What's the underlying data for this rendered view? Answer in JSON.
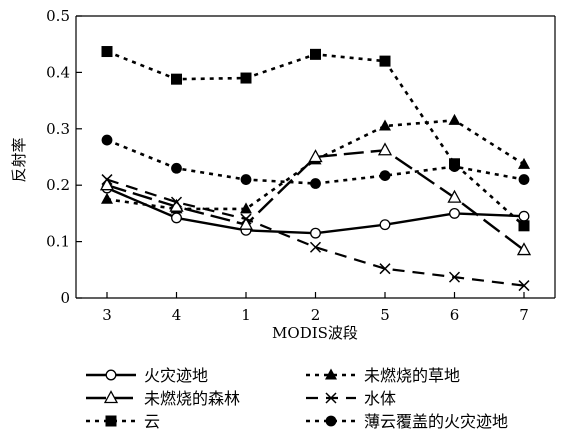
{
  "chart_data": {
    "type": "line",
    "title": "",
    "xlabel": "MODIS波段",
    "ylabel": "反射率",
    "categories": [
      "3",
      "4",
      "1",
      "2",
      "5",
      "6",
      "7"
    ],
    "yticks": [
      "0",
      "0.1",
      "0.2",
      "0.3",
      "0.4",
      "0.5"
    ],
    "ylim": [
      0,
      0.5
    ],
    "grid": false,
    "legend_position": "bottom",
    "series": [
      {
        "name": "火灾迹地",
        "marker": "open-circle",
        "line": "solid",
        "values": [
          0.195,
          0.142,
          0.12,
          0.115,
          0.13,
          0.15,
          0.145
        ]
      },
      {
        "name": "未燃烧的草地",
        "marker": "filled-triangle",
        "line": "dotted",
        "values": [
          0.175,
          0.158,
          0.158,
          0.245,
          0.305,
          0.315,
          0.237
        ]
      },
      {
        "name": "未燃烧的森林",
        "marker": "open-triangle",
        "line": "long-dash",
        "values": [
          0.2,
          0.162,
          0.13,
          0.25,
          0.262,
          0.178,
          0.085
        ]
      },
      {
        "name": "水体",
        "marker": "cross",
        "line": "dash",
        "values": [
          0.21,
          0.17,
          0.14,
          0.09,
          0.052,
          0.037,
          0.022
        ]
      },
      {
        "name": "云",
        "marker": "filled-square",
        "line": "dotted",
        "values": [
          0.437,
          0.388,
          0.39,
          0.432,
          0.42,
          0.238,
          0.128
        ]
      },
      {
        "name": "薄云覆盖的火灾迹地",
        "marker": "filled-circle",
        "line": "dotted",
        "values": [
          0.28,
          0.23,
          0.21,
          0.203,
          0.217,
          0.233,
          0.21
        ]
      }
    ]
  }
}
